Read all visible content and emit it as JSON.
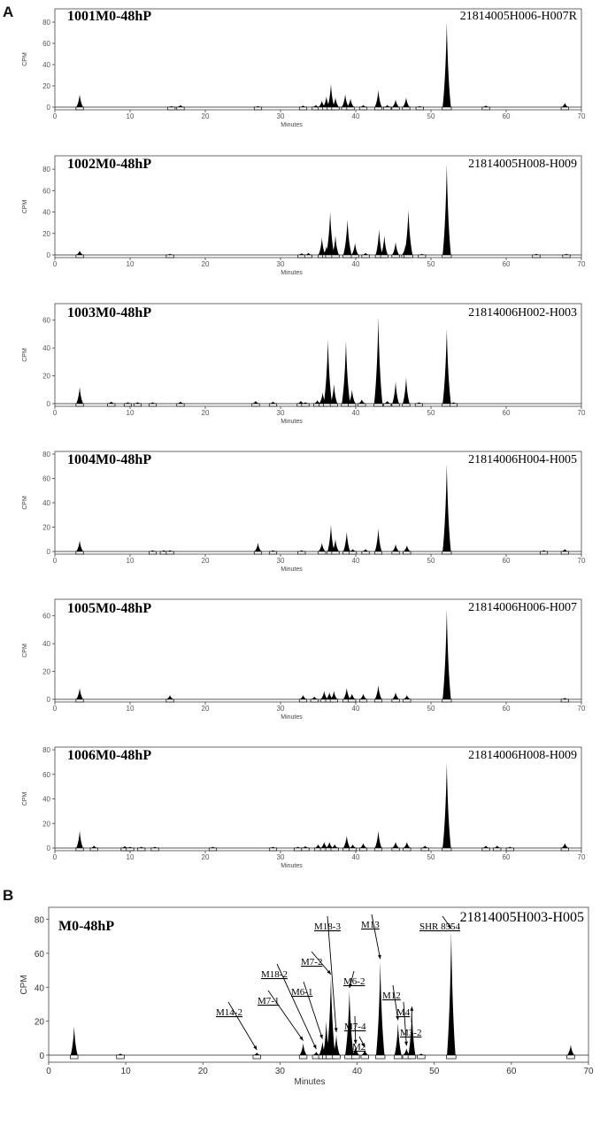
{
  "panel_labels": [
    "A",
    "B"
  ],
  "chart_data": [
    {
      "type": "area",
      "panel": "A",
      "title": "1001M0-48hP",
      "run_id": "21814005H006-H007R",
      "xlabel": "Minutes",
      "ylabel": "CPM",
      "xlim": [
        0,
        70
      ],
      "ylim": [
        0,
        90
      ],
      "xticks": [
        0,
        10,
        20,
        30,
        40,
        50,
        60,
        70
      ],
      "yticks": [
        0,
        20,
        40,
        60,
        80
      ],
      "peaks": [
        {
          "x": 3.3,
          "y": 12
        },
        {
          "x": 15.5,
          "y": 1
        },
        {
          "x": 16.7,
          "y": 2
        },
        {
          "x": 27,
          "y": 1
        },
        {
          "x": 33,
          "y": 1.5
        },
        {
          "x": 34.7,
          "y": 2
        },
        {
          "x": 35.5,
          "y": 6
        },
        {
          "x": 36.1,
          "y": 10
        },
        {
          "x": 36.7,
          "y": 22
        },
        {
          "x": 37.3,
          "y": 9
        },
        {
          "x": 38.6,
          "y": 12
        },
        {
          "x": 39.3,
          "y": 8
        },
        {
          "x": 41,
          "y": 2
        },
        {
          "x": 43,
          "y": 16
        },
        {
          "x": 44.2,
          "y": 2
        },
        {
          "x": 45.3,
          "y": 7
        },
        {
          "x": 46.7,
          "y": 9
        },
        {
          "x": 48.5,
          "y": 1
        },
        {
          "x": 52.1,
          "y": 80
        },
        {
          "x": 57.3,
          "y": 1.5
        },
        {
          "x": 67.8,
          "y": 4
        }
      ]
    },
    {
      "type": "area",
      "panel": "A",
      "title": "1002M0-48hP",
      "run_id": "21814005H008-H009",
      "xlabel": "Minutes",
      "ylabel": "CPM",
      "xlim": [
        0,
        70
      ],
      "ylim": [
        0,
        90
      ],
      "xticks": [
        0,
        10,
        20,
        30,
        40,
        50,
        60,
        70
      ],
      "yticks": [
        0,
        20,
        40,
        60,
        80
      ],
      "peaks": [
        {
          "x": 3.3,
          "y": 4
        },
        {
          "x": 15.3,
          "y": 1
        },
        {
          "x": 32.8,
          "y": 1.5
        },
        {
          "x": 33.7,
          "y": 2
        },
        {
          "x": 35.5,
          "y": 16
        },
        {
          "x": 36.1,
          "y": 8
        },
        {
          "x": 36.6,
          "y": 40
        },
        {
          "x": 37.3,
          "y": 18
        },
        {
          "x": 38.9,
          "y": 33
        },
        {
          "x": 39.9,
          "y": 11
        },
        {
          "x": 41.3,
          "y": 2
        },
        {
          "x": 43.1,
          "y": 24
        },
        {
          "x": 43.8,
          "y": 18
        },
        {
          "x": 45.3,
          "y": 12
        },
        {
          "x": 46.6,
          "y": 9
        },
        {
          "x": 47,
          "y": 42
        },
        {
          "x": 48.8,
          "y": 1
        },
        {
          "x": 52.1,
          "y": 85
        },
        {
          "x": 64,
          "y": 1
        },
        {
          "x": 68,
          "y": 1
        }
      ]
    },
    {
      "type": "area",
      "panel": "A",
      "title": "1003M0-48hP",
      "run_id": "21814006H002-H003",
      "xlabel": "Minutes",
      "ylabel": "CPM",
      "xlim": [
        0,
        70
      ],
      "ylim": [
        0,
        70
      ],
      "xticks": [
        0,
        10,
        20,
        30,
        40,
        50,
        60,
        70
      ],
      "yticks": [
        0,
        20,
        40,
        60
      ],
      "peaks": [
        {
          "x": 3.3,
          "y": 12
        },
        {
          "x": 7.5,
          "y": 1.5
        },
        {
          "x": 9.7,
          "y": 1
        },
        {
          "x": 11,
          "y": 1
        },
        {
          "x": 13,
          "y": 1
        },
        {
          "x": 16.7,
          "y": 1.5
        },
        {
          "x": 26.7,
          "y": 2
        },
        {
          "x": 29,
          "y": 1.5
        },
        {
          "x": 32.7,
          "y": 2
        },
        {
          "x": 33.3,
          "y": 1
        },
        {
          "x": 34.9,
          "y": 2.5
        },
        {
          "x": 35.6,
          "y": 8
        },
        {
          "x": 36.3,
          "y": 46
        },
        {
          "x": 37.1,
          "y": 14
        },
        {
          "x": 38.7,
          "y": 45
        },
        {
          "x": 39.5,
          "y": 10
        },
        {
          "x": 40.8,
          "y": 3
        },
        {
          "x": 43,
          "y": 62
        },
        {
          "x": 44.2,
          "y": 2
        },
        {
          "x": 45.3,
          "y": 16
        },
        {
          "x": 46.7,
          "y": 19
        },
        {
          "x": 48.4,
          "y": 1
        },
        {
          "x": 52.1,
          "y": 54
        },
        {
          "x": 53,
          "y": 1
        }
      ]
    },
    {
      "type": "area",
      "panel": "A",
      "title": "1004M0-48hP",
      "run_id": "21814006H004-H005",
      "xlabel": "Minutes",
      "ylabel": "CPM",
      "xlim": [
        0,
        70
      ],
      "ylim": [
        0,
        80
      ],
      "xticks": [
        0,
        10,
        20,
        30,
        40,
        50,
        60,
        70
      ],
      "yticks": [
        0,
        20,
        40,
        60,
        80
      ],
      "peaks": [
        {
          "x": 3.3,
          "y": 9
        },
        {
          "x": 13,
          "y": 1
        },
        {
          "x": 14.5,
          "y": 1
        },
        {
          "x": 15.3,
          "y": 1
        },
        {
          "x": 27,
          "y": 7
        },
        {
          "x": 29,
          "y": 1
        },
        {
          "x": 32.8,
          "y": 1
        },
        {
          "x": 35.5,
          "y": 7
        },
        {
          "x": 36.7,
          "y": 22
        },
        {
          "x": 37.3,
          "y": 10
        },
        {
          "x": 38.8,
          "y": 16
        },
        {
          "x": 39.6,
          "y": 2
        },
        {
          "x": 41.3,
          "y": 2
        },
        {
          "x": 43,
          "y": 19
        },
        {
          "x": 45.3,
          "y": 6
        },
        {
          "x": 46.8,
          "y": 5
        },
        {
          "x": 52.1,
          "y": 72
        },
        {
          "x": 65,
          "y": 1
        },
        {
          "x": 67.8,
          "y": 2
        }
      ]
    },
    {
      "type": "area",
      "panel": "A",
      "title": "1005M0-48hP",
      "run_id": "21814006H006-H007",
      "xlabel": "Minutes",
      "ylabel": "CPM",
      "xlim": [
        0,
        70
      ],
      "ylim": [
        0,
        70
      ],
      "xticks": [
        0,
        10,
        20,
        30,
        40,
        50,
        60,
        70
      ],
      "yticks": [
        0,
        20,
        40,
        60
      ],
      "peaks": [
        {
          "x": 3.3,
          "y": 8
        },
        {
          "x": 15.3,
          "y": 3
        },
        {
          "x": 33,
          "y": 3
        },
        {
          "x": 34.5,
          "y": 2
        },
        {
          "x": 35.8,
          "y": 6
        },
        {
          "x": 36.5,
          "y": 5
        },
        {
          "x": 37.1,
          "y": 6
        },
        {
          "x": 38.8,
          "y": 8
        },
        {
          "x": 39.5,
          "y": 4
        },
        {
          "x": 41,
          "y": 4
        },
        {
          "x": 43,
          "y": 10
        },
        {
          "x": 45.3,
          "y": 5
        },
        {
          "x": 46.8,
          "y": 3
        },
        {
          "x": 52.1,
          "y": 65
        },
        {
          "x": 67.8,
          "y": 1
        }
      ]
    },
    {
      "type": "area",
      "panel": "A",
      "title": "1006M0-48hP",
      "run_id": "21814006H008-H009",
      "xlabel": "Minutes",
      "ylabel": "CPM",
      "xlim": [
        0,
        70
      ],
      "ylim": [
        0,
        80
      ],
      "xticks": [
        0,
        10,
        20,
        30,
        40,
        50,
        60,
        70
      ],
      "yticks": [
        0,
        20,
        40,
        60,
        80
      ],
      "peaks": [
        {
          "x": 3.3,
          "y": 14
        },
        {
          "x": 5.2,
          "y": 2
        },
        {
          "x": 9.3,
          "y": 1.5
        },
        {
          "x": 10,
          "y": 1
        },
        {
          "x": 11.5,
          "y": 1
        },
        {
          "x": 13.3,
          "y": 1
        },
        {
          "x": 21,
          "y": 1
        },
        {
          "x": 29,
          "y": 1
        },
        {
          "x": 32.3,
          "y": 1
        },
        {
          "x": 33.3,
          "y": 1.5
        },
        {
          "x": 35,
          "y": 3
        },
        {
          "x": 35.8,
          "y": 5
        },
        {
          "x": 36.5,
          "y": 5
        },
        {
          "x": 37.2,
          "y": 3
        },
        {
          "x": 38.8,
          "y": 10
        },
        {
          "x": 39.6,
          "y": 3
        },
        {
          "x": 41,
          "y": 4
        },
        {
          "x": 43,
          "y": 14
        },
        {
          "x": 45.3,
          "y": 5
        },
        {
          "x": 46.8,
          "y": 5
        },
        {
          "x": 49.2,
          "y": 2
        },
        {
          "x": 52.1,
          "y": 69
        },
        {
          "x": 57.3,
          "y": 2
        },
        {
          "x": 58.8,
          "y": 2
        },
        {
          "x": 60.5,
          "y": 1
        },
        {
          "x": 67.8,
          "y": 4
        }
      ]
    },
    {
      "type": "area",
      "panel": "B",
      "title": "M0-48hP",
      "run_id": "21814005H003-H005",
      "xlabel": "Minutes",
      "ylabel": "CPM",
      "xlim": [
        0,
        70
      ],
      "ylim": [
        0,
        85
      ],
      "xticks": [
        0,
        10,
        20,
        30,
        40,
        50,
        60,
        70
      ],
      "yticks": [
        0,
        20,
        40,
        60,
        80
      ],
      "peaks": [
        {
          "x": 3.3,
          "y": 17
        },
        {
          "x": 9.3,
          "y": 1
        },
        {
          "x": 27,
          "y": 1.5
        },
        {
          "x": 33,
          "y": 7
        },
        {
          "x": 34.7,
          "y": 2
        },
        {
          "x": 35.5,
          "y": 8
        },
        {
          "x": 36,
          "y": 20
        },
        {
          "x": 36.6,
          "y": 46
        },
        {
          "x": 37.3,
          "y": 12
        },
        {
          "x": 39,
          "y": 38
        },
        {
          "x": 39.8,
          "y": 5
        },
        {
          "x": 41,
          "y": 3
        },
        {
          "x": 43,
          "y": 55
        },
        {
          "x": 45.3,
          "y": 19
        },
        {
          "x": 46.4,
          "y": 4
        },
        {
          "x": 47.1,
          "y": 27
        },
        {
          "x": 48.3,
          "y": 1
        },
        {
          "x": 52.2,
          "y": 73
        },
        {
          "x": 67.7,
          "y": 6
        }
      ],
      "annotations": [
        {
          "label": "M14-2",
          "x": 27,
          "y": 1.5
        },
        {
          "label": "M7-1",
          "x": 33,
          "y": 7
        },
        {
          "label": "M18-2",
          "x": 34.7,
          "y": 2
        },
        {
          "label": "M6-1",
          "x": 35.5,
          "y": 8
        },
        {
          "label": "M7-2",
          "x": 36.6,
          "y": 46
        },
        {
          "label": "M18-3",
          "x": 37.3,
          "y": 12
        },
        {
          "label": "M6-2",
          "x": 39,
          "y": 38
        },
        {
          "label": "M7-4",
          "x": 39.8,
          "y": 5
        },
        {
          "label": "M2",
          "x": 41,
          "y": 3
        },
        {
          "label": "M13",
          "x": 43,
          "y": 55
        },
        {
          "label": "M12",
          "x": 45.3,
          "y": 19
        },
        {
          "label": "M4",
          "x": 46.4,
          "y": 4
        },
        {
          "label": "M3-2",
          "x": 47.1,
          "y": 27
        },
        {
          "label": "SHR 8554",
          "x": 52.2,
          "y": 73
        }
      ]
    }
  ]
}
